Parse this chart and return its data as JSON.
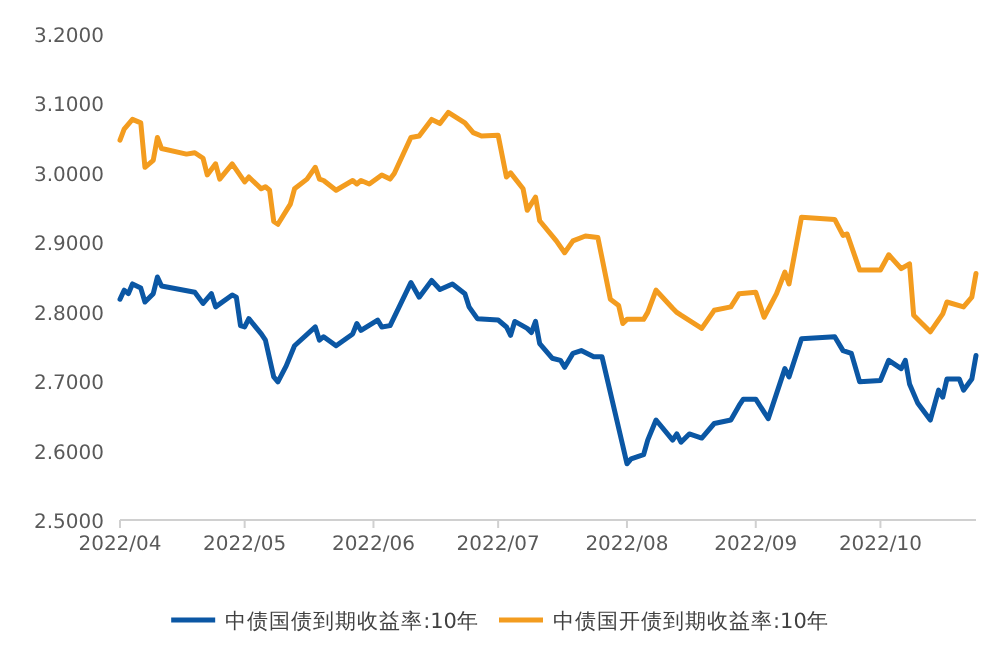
{
  "chart_data": {
    "type": "line",
    "xlim": [
      "2022-04-01",
      "2022-10-24"
    ],
    "xticks": [
      {
        "value": "2022-04-01",
        "label": "2022/04"
      },
      {
        "value": "2022-05-01",
        "label": "2022/05"
      },
      {
        "value": "2022-06-01",
        "label": "2022/06"
      },
      {
        "value": "2022-07-01",
        "label": "2022/07"
      },
      {
        "value": "2022-08-01",
        "label": "2022/08"
      },
      {
        "value": "2022-09-01",
        "label": "2022/09"
      },
      {
        "value": "2022-10-01",
        "label": "2022/10"
      }
    ],
    "ylim": [
      2.5,
      3.2
    ],
    "yticks": [
      {
        "value": 2.5,
        "label": "2.5000"
      },
      {
        "value": 2.6,
        "label": "2.6000"
      },
      {
        "value": 2.7,
        "label": "2.7000"
      },
      {
        "value": 2.8,
        "label": "2.8000"
      },
      {
        "value": 2.9,
        "label": "2.9000"
      },
      {
        "value": 3.0,
        "label": "3.0000"
      },
      {
        "value": 3.1,
        "label": "3.1000"
      },
      {
        "value": 3.2,
        "label": "3.2000"
      }
    ],
    "grid": false,
    "legend": "bottom",
    "marker": "none",
    "line_style": "solid",
    "series": [
      {
        "name": "中债国债到期收益率:10年",
        "color": "#0b57a4",
        "x": [
          "2022-04-01",
          "2022-04-02",
          "2022-04-03",
          "2022-04-04",
          "2022-04-06",
          "2022-04-07",
          "2022-04-09",
          "2022-04-10",
          "2022-04-11",
          "2022-04-19",
          "2022-04-21",
          "2022-04-23",
          "2022-04-24",
          "2022-04-28",
          "2022-04-29",
          "2022-04-30",
          "2022-05-01",
          "2022-05-02",
          "2022-05-05",
          "2022-05-06",
          "2022-05-08",
          "2022-05-09",
          "2022-05-11",
          "2022-05-13",
          "2022-05-18",
          "2022-05-19",
          "2022-05-20",
          "2022-05-23",
          "2022-05-27",
          "2022-05-28",
          "2022-05-29",
          "2022-06-02",
          "2022-06-03",
          "2022-06-05",
          "2022-06-10",
          "2022-06-12",
          "2022-06-15",
          "2022-06-17",
          "2022-06-20",
          "2022-06-23",
          "2022-06-24",
          "2022-06-26",
          "2022-07-01",
          "2022-07-03",
          "2022-07-04",
          "2022-07-05",
          "2022-07-08",
          "2022-07-09",
          "2022-07-10",
          "2022-07-11",
          "2022-07-14",
          "2022-07-16",
          "2022-07-17",
          "2022-07-19",
          "2022-07-21",
          "2022-07-24",
          "2022-07-26",
          "2022-07-31",
          "2022-08-01",
          "2022-08-02",
          "2022-08-05",
          "2022-08-06",
          "2022-08-08",
          "2022-08-12",
          "2022-08-13",
          "2022-08-14",
          "2022-08-16",
          "2022-08-19",
          "2022-08-22",
          "2022-08-26",
          "2022-08-28",
          "2022-08-29",
          "2022-09-01",
          "2022-09-04",
          "2022-09-06",
          "2022-09-08",
          "2022-09-09",
          "2022-09-12",
          "2022-09-20",
          "2022-09-22",
          "2022-09-24",
          "2022-09-26",
          "2022-10-01",
          "2022-10-03",
          "2022-10-06",
          "2022-10-07",
          "2022-10-08",
          "2022-10-10",
          "2022-10-13",
          "2022-10-15",
          "2022-10-16",
          "2022-10-17",
          "2022-10-20",
          "2022-10-21",
          "2022-10-23",
          "2022-10-24"
        ],
        "values": [
          2.818,
          2.831,
          2.826,
          2.84,
          2.834,
          2.814,
          2.826,
          2.85,
          2.837,
          2.828,
          2.812,
          2.826,
          2.807,
          2.824,
          2.821,
          2.78,
          2.778,
          2.79,
          2.768,
          2.759,
          2.706,
          2.699,
          2.722,
          2.751,
          2.778,
          2.759,
          2.764,
          2.751,
          2.768,
          2.783,
          2.773,
          2.788,
          2.778,
          2.78,
          2.842,
          2.821,
          2.845,
          2.832,
          2.84,
          2.826,
          2.807,
          2.79,
          2.788,
          2.778,
          2.766,
          2.786,
          2.776,
          2.77,
          2.786,
          2.754,
          2.733,
          2.73,
          2.72,
          2.74,
          2.744,
          2.735,
          2.735,
          2.607,
          2.581,
          2.588,
          2.594,
          2.615,
          2.644,
          2.615,
          2.624,
          2.612,
          2.624,
          2.618,
          2.639,
          2.644,
          2.665,
          2.674,
          2.674,
          2.646,
          2.682,
          2.718,
          2.706,
          2.761,
          2.764,
          2.744,
          2.74,
          2.699,
          2.701,
          2.73,
          2.718,
          2.73,
          2.696,
          2.668,
          2.644,
          2.687,
          2.677,
          2.703,
          2.703,
          2.687,
          2.703,
          2.737
        ]
      },
      {
        "name": "中债国开债到期收益率:10年",
        "color": "#f39c1f",
        "x": [
          "2022-04-01",
          "2022-04-02",
          "2022-04-04",
          "2022-04-06",
          "2022-04-07",
          "2022-04-09",
          "2022-04-10",
          "2022-04-11",
          "2022-04-17",
          "2022-04-19",
          "2022-04-21",
          "2022-04-22",
          "2022-04-24",
          "2022-04-25",
          "2022-04-28",
          "2022-05-01",
          "2022-05-02",
          "2022-05-05",
          "2022-05-06",
          "2022-05-07",
          "2022-05-08",
          "2022-05-09",
          "2022-05-12",
          "2022-05-13",
          "2022-05-16",
          "2022-05-18",
          "2022-05-19",
          "2022-05-20",
          "2022-05-23",
          "2022-05-27",
          "2022-05-28",
          "2022-05-29",
          "2022-05-31",
          "2022-06-03",
          "2022-06-05",
          "2022-06-06",
          "2022-06-10",
          "2022-06-12",
          "2022-06-15",
          "2022-06-17",
          "2022-06-19",
          "2022-06-23",
          "2022-06-25",
          "2022-06-27",
          "2022-07-01",
          "2022-07-03",
          "2022-07-04",
          "2022-07-07",
          "2022-07-08",
          "2022-07-10",
          "2022-07-11",
          "2022-07-15",
          "2022-07-17",
          "2022-07-19",
          "2022-07-22",
          "2022-07-25",
          "2022-07-28",
          "2022-07-30",
          "2022-07-31",
          "2022-08-01",
          "2022-08-05",
          "2022-08-06",
          "2022-08-08",
          "2022-08-12",
          "2022-08-13",
          "2022-08-14",
          "2022-08-19",
          "2022-08-22",
          "2022-08-26",
          "2022-08-28",
          "2022-09-01",
          "2022-09-03",
          "2022-09-06",
          "2022-09-08",
          "2022-09-09",
          "2022-09-12",
          "2022-09-20",
          "2022-09-22",
          "2022-09-23",
          "2022-09-26",
          "2022-10-01",
          "2022-10-03",
          "2022-10-06",
          "2022-10-08",
          "2022-10-09",
          "2022-10-13",
          "2022-10-16",
          "2022-10-17",
          "2022-10-21",
          "2022-10-23",
          "2022-10-24"
        ],
        "values": [
          3.047,
          3.063,
          3.077,
          3.072,
          3.008,
          3.018,
          3.051,
          3.035,
          3.027,
          3.029,
          3.021,
          2.997,
          3.013,
          2.991,
          3.013,
          2.987,
          2.994,
          2.977,
          2.98,
          2.975,
          2.93,
          2.926,
          2.955,
          2.977,
          2.991,
          3.008,
          2.991,
          2.989,
          2.975,
          2.989,
          2.984,
          2.989,
          2.984,
          2.997,
          2.991,
          2.999,
          3.051,
          3.053,
          3.077,
          3.071,
          3.087,
          3.072,
          3.058,
          3.053,
          3.054,
          2.994,
          3.0,
          2.977,
          2.946,
          2.965,
          2.931,
          2.902,
          2.885,
          2.902,
          2.909,
          2.907,
          2.818,
          2.809,
          2.783,
          2.789,
          2.789,
          2.799,
          2.831,
          2.805,
          2.799,
          2.795,
          2.776,
          2.802,
          2.807,
          2.826,
          2.828,
          2.792,
          2.826,
          2.857,
          2.84,
          2.936,
          2.933,
          2.91,
          2.912,
          2.86,
          2.86,
          2.882,
          2.862,
          2.869,
          2.795,
          2.771,
          2.797,
          2.814,
          2.807,
          2.821,
          2.855
        ]
      }
    ]
  }
}
